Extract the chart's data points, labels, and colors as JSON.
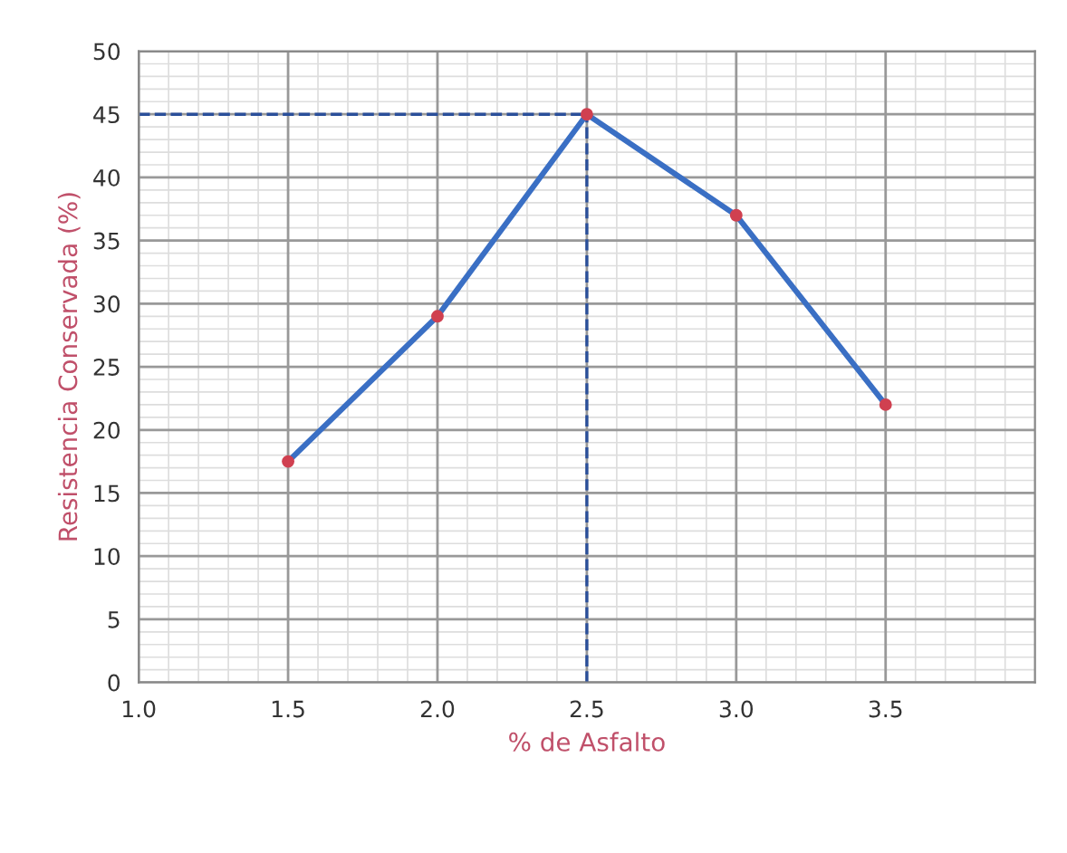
{
  "chart_data": {
    "type": "line",
    "xlabel": "% de Asfalto",
    "ylabel": "Resistencia Conservada (%)",
    "x": [
      1.5,
      2.0,
      2.5,
      3.0,
      3.5
    ],
    "series": [
      {
        "color": "#3a6fc4",
        "values": [
          17.5,
          29,
          45,
          37,
          22
        ]
      }
    ],
    "marker": "circle",
    "line_style": "solid",
    "xlim": [
      1.0,
      4.0
    ],
    "xticks": [
      {
        "value": 1.0,
        "label": "1.0"
      },
      {
        "value": 1.5,
        "label": "1.5"
      },
      {
        "value": 2.0,
        "label": "2.0"
      },
      {
        "value": 2.5,
        "label": "2.5"
      },
      {
        "value": 3.0,
        "label": "3.0"
      },
      {
        "value": 3.5,
        "label": "3.5"
      }
    ],
    "ylim": [
      0,
      50
    ],
    "yticks": [
      0,
      5,
      10,
      15,
      20,
      25,
      30,
      35,
      40,
      45,
      50
    ],
    "grid": true,
    "ref_lines": [
      {
        "axis": "y",
        "value": 45,
        "color": "#2a4f9a",
        "line_style": "dashed"
      },
      {
        "axis": "x",
        "value": 2.5,
        "color": "#2a4f9a",
        "line_style": "dashed"
      }
    ]
  }
}
